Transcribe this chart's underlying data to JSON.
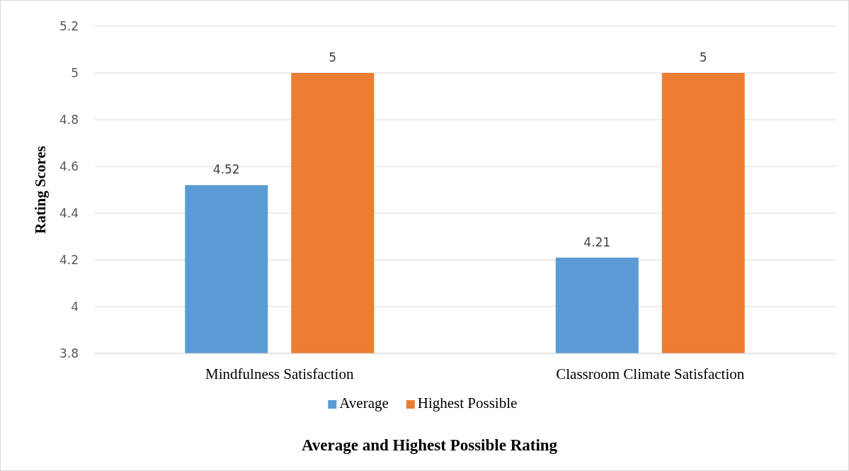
{
  "chart_data": {
    "type": "bar",
    "title": "Average and Highest Possible Rating",
    "ylabel": "Rating Scores",
    "categories": [
      "Mindfulness Satisfaction",
      "Classroom Climate Satisfaction"
    ],
    "series": [
      {
        "name": "Average",
        "color": "#5b9bd5",
        "values": [
          4.52,
          4.21
        ]
      },
      {
        "name": "Highest Possible",
        "color": "#ed7d31",
        "values": [
          5,
          5
        ]
      }
    ],
    "ylim": [
      3.8,
      5.2
    ],
    "yticks": [
      3.8,
      {
        "value": 4,
        "label": "4"
      },
      4.2,
      4.4,
      4.6,
      4.8,
      {
        "value": 5,
        "label": "5"
      },
      5.2
    ],
    "grid": "y",
    "legend": "bottom",
    "data_labels": true
  }
}
